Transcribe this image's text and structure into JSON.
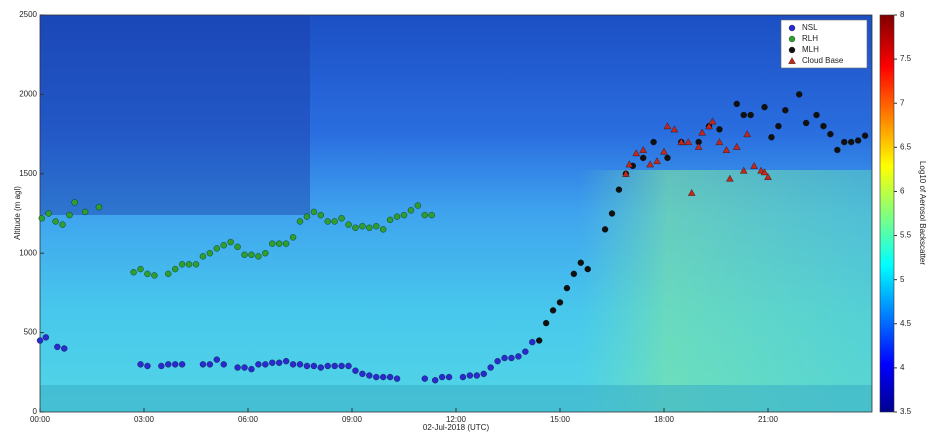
{
  "chart_data": {
    "type": "scatter",
    "x_label": "02-Jul-2018 (UTC)",
    "y_label": "Altitude (m agl)",
    "colorbar_label": "Log10 of Aerosol Backscatter",
    "xlim": [
      0,
      24
    ],
    "xticks": [
      {
        "value": 0,
        "label": "00:00"
      },
      {
        "value": 3,
        "label": "03:00"
      },
      {
        "value": 6,
        "label": "06:00"
      },
      {
        "value": 9,
        "label": "09:00"
      },
      {
        "value": 12,
        "label": "12:00"
      },
      {
        "value": 15,
        "label": "15:00"
      },
      {
        "value": 18,
        "label": "18:00"
      },
      {
        "value": 21,
        "label": "21:00"
      }
    ],
    "ylim": [
      0,
      2500
    ],
    "yticks": [
      0,
      500,
      1000,
      1500,
      2000,
      2500
    ],
    "clim": [
      3.5,
      8
    ],
    "cticks": [
      3.5,
      4,
      4.5,
      5,
      5.5,
      6,
      6.5,
      7,
      7.5,
      8
    ],
    "legend_position": "upper right",
    "series": [
      {
        "name": "NSL",
        "color": "#2a2ad0",
        "marker": "circle",
        "x": [
          0.0,
          0.17,
          0.5,
          0.7,
          2.9,
          3.1,
          3.5,
          3.7,
          3.9,
          4.1,
          4.7,
          4.9,
          5.1,
          5.3,
          5.7,
          5.9,
          6.1,
          6.3,
          6.5,
          6.7,
          6.9,
          7.1,
          7.3,
          7.5,
          7.7,
          7.9,
          8.1,
          8.3,
          8.5,
          8.7,
          8.9,
          9.1,
          9.3,
          9.5,
          9.7,
          9.9,
          10.1,
          10.3,
          11.1,
          11.4,
          11.6,
          11.8,
          12.2,
          12.4,
          12.6,
          12.8,
          13.0,
          13.2,
          13.4,
          13.6,
          13.8,
          14.0,
          14.2
        ],
        "values": [
          450,
          470,
          410,
          400,
          300,
          290,
          290,
          300,
          300,
          300,
          300,
          300,
          330,
          300,
          280,
          280,
          270,
          300,
          300,
          310,
          310,
          320,
          300,
          300,
          290,
          290,
          280,
          290,
          290,
          290,
          290,
          260,
          240,
          230,
          220,
          220,
          220,
          210,
          210,
          200,
          220,
          220,
          220,
          230,
          230,
          240,
          280,
          320,
          340,
          340,
          350,
          380,
          440
        ]
      },
      {
        "name": "RLH",
        "color": "#2e9e2e",
        "marker": "circle",
        "x": [
          0.05,
          0.25,
          0.45,
          0.65,
          0.85,
          1.0,
          1.3,
          1.7,
          2.7,
          2.9,
          3.1,
          3.3,
          3.7,
          3.9,
          4.1,
          4.3,
          4.5,
          4.7,
          4.9,
          5.1,
          5.3,
          5.5,
          5.7,
          5.9,
          6.1,
          6.3,
          6.5,
          6.7,
          6.9,
          7.1,
          7.3,
          7.5,
          7.7,
          7.9,
          8.1,
          8.3,
          8.5,
          8.7,
          8.9,
          9.1,
          9.3,
          9.5,
          9.7,
          9.9,
          10.1,
          10.3,
          10.5,
          10.7,
          10.9,
          11.1,
          11.3
        ],
        "values": [
          1220,
          1250,
          1200,
          1180,
          1240,
          1320,
          1260,
          1290,
          880,
          900,
          870,
          860,
          870,
          900,
          930,
          930,
          930,
          980,
          1000,
          1030,
          1050,
          1070,
          1040,
          990,
          990,
          980,
          1000,
          1060,
          1060,
          1060,
          1100,
          1200,
          1230,
          1260,
          1240,
          1200,
          1200,
          1220,
          1180,
          1160,
          1170,
          1160,
          1170,
          1150,
          1210,
          1230,
          1240,
          1270,
          1300,
          1240,
          1240
        ]
      },
      {
        "name": "MLH",
        "color": "#111111",
        "marker": "circle",
        "x": [
          14.4,
          14.6,
          14.8,
          15.0,
          15.2,
          15.4,
          15.6,
          15.8,
          16.3,
          16.5,
          16.7,
          16.9,
          17.1,
          17.4,
          17.7,
          18.1,
          18.5,
          19.0,
          19.3,
          19.6,
          20.1,
          20.3,
          20.5,
          20.9,
          21.1,
          21.3,
          21.5,
          21.9,
          22.1,
          22.4,
          22.6,
          22.8,
          23.0,
          23.2,
          23.4,
          23.6,
          23.8
        ],
        "values": [
          450,
          560,
          640,
          690,
          780,
          870,
          940,
          900,
          1150,
          1250,
          1400,
          1500,
          1550,
          1600,
          1700,
          1600,
          1700,
          1700,
          1800,
          1780,
          1940,
          1870,
          1870,
          1920,
          1730,
          1800,
          1900,
          2000,
          1820,
          1870,
          1800,
          1750,
          1650,
          1700,
          1700,
          1710,
          1740
        ]
      },
      {
        "name": "Cloud Base",
        "color": "#c0281e",
        "marker": "triangle",
        "x": [
          16.9,
          17.0,
          17.2,
          17.4,
          17.6,
          17.8,
          18.0,
          18.1,
          18.3,
          18.5,
          18.7,
          18.8,
          19.0,
          19.1,
          19.3,
          19.4,
          19.6,
          19.8,
          19.9,
          20.1,
          20.3,
          20.4,
          20.6,
          20.8,
          20.9,
          21.0
        ],
        "values": [
          1500,
          1560,
          1630,
          1650,
          1560,
          1580,
          1640,
          1800,
          1780,
          1700,
          1700,
          1380,
          1670,
          1760,
          1800,
          1830,
          1700,
          1650,
          1470,
          1670,
          1520,
          1750,
          1550,
          1520,
          1510,
          1480
        ]
      }
    ]
  }
}
